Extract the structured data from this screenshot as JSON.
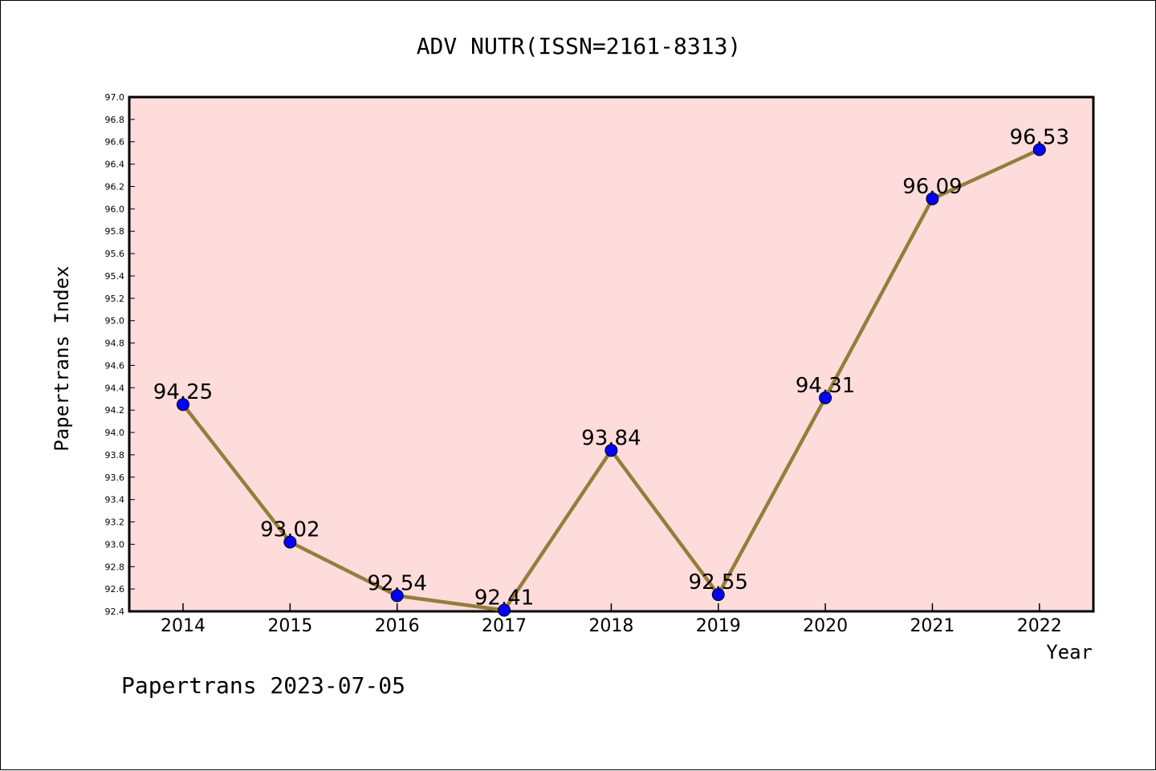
{
  "chart_data": {
    "type": "line",
    "title": "ADV NUTR(ISSN=2161-8313)",
    "xlabel": "Year",
    "ylabel": "Papertrans Index",
    "categories": [
      "2014",
      "2015",
      "2016",
      "2017",
      "2018",
      "2019",
      "2020",
      "2021",
      "2022"
    ],
    "series": [
      {
        "values": [
          94.25,
          93.02,
          92.54,
          92.41,
          93.84,
          92.55,
          94.31,
          96.09,
          96.53
        ],
        "labels": [
          "94.25",
          "93.02",
          "92.54",
          "92.41",
          "93.84",
          "92.55",
          "94.31",
          "96.09",
          "96.53"
        ]
      }
    ],
    "ylim": [
      92.4,
      97.0
    ],
    "yticks": [
      "92.4",
      "92.6",
      "92.8",
      "93.0",
      "93.2",
      "93.4",
      "93.6",
      "93.8",
      "94.0",
      "94.2",
      "94.4",
      "94.6",
      "94.8",
      "95.0",
      "95.2",
      "95.4",
      "95.6",
      "95.8",
      "96.0",
      "96.2",
      "96.4",
      "96.6",
      "96.8",
      "97.0"
    ],
    "grid": false,
    "colors": {
      "plot_background": "#fddcdb",
      "line": "#957d3c",
      "marker": "#0000ff"
    }
  },
  "footer": "Papertrans 2023-07-05"
}
